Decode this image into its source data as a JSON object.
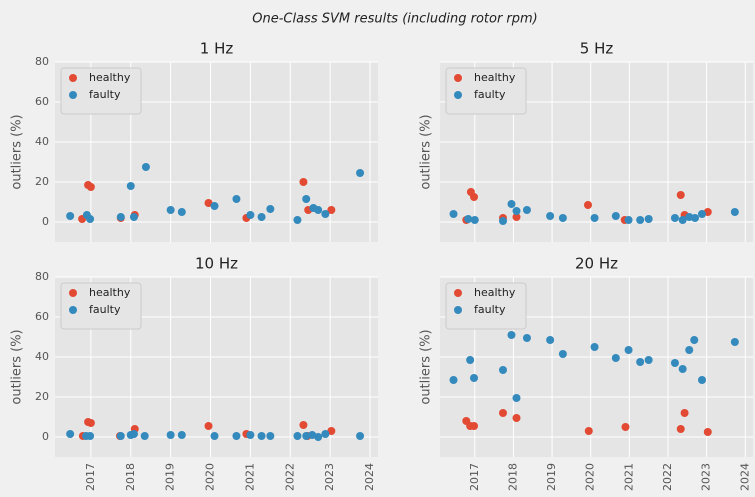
{
  "suptitle": "One-Class SVM results (including rotor rpm)",
  "chart_data": [
    {
      "type": "scatter",
      "title": "1 Hz",
      "ylabel": "outliers (%)",
      "xlim": [
        2016.1,
        2024.2
      ],
      "ylim": [
        -10,
        80
      ],
      "xticks": [
        2017,
        2018,
        2019,
        2020,
        2021,
        2022,
        2023,
        2024
      ],
      "yticks": [
        0,
        20,
        40,
        60,
        80
      ],
      "grid": true,
      "legend": "upper left",
      "series": [
        {
          "name": "healthy",
          "color": "#E24A33",
          "x": [
            2016.78,
            2016.93,
            2017.0,
            2017.75,
            2018.1,
            2019.95,
            2020.9,
            2022.33,
            2022.45,
            2023.03
          ],
          "values": [
            1.5,
            18.5,
            17.5,
            2,
            3.5,
            9.5,
            2,
            20,
            6,
            6
          ]
        },
        {
          "name": "faulty",
          "color": "#348ABD",
          "x": [
            2016.48,
            2016.9,
            2016.98,
            2017.75,
            2018.0,
            2018.08,
            2018.38,
            2019.0,
            2019.28,
            2020.1,
            2020.65,
            2021.0,
            2021.28,
            2021.5,
            2022.18,
            2022.4,
            2022.58,
            2022.7,
            2022.88,
            2023.75
          ],
          "values": [
            3,
            3.5,
            1.5,
            2.5,
            18,
            2.5,
            27.5,
            6,
            5,
            8,
            11.5,
            3.5,
            2.5,
            6.5,
            1,
            11.5,
            7,
            6,
            4,
            24.5
          ]
        }
      ]
    },
    {
      "type": "scatter",
      "title": "5 Hz",
      "ylabel": "outliers (%)",
      "xlim": [
        2016.1,
        2024.2
      ],
      "ylim": [
        -10,
        80
      ],
      "xticks": [
        2017,
        2018,
        2019,
        2020,
        2021,
        2022,
        2023,
        2024
      ],
      "yticks": [
        0,
        20,
        40,
        60,
        80
      ],
      "grid": true,
      "legend": "upper left",
      "series": [
        {
          "name": "healthy",
          "color": "#E24A33",
          "x": [
            2016.78,
            2016.9,
            2016.98,
            2017.73,
            2018.08,
            2019.93,
            2020.88,
            2022.33,
            2022.43,
            2023.03
          ],
          "values": [
            1,
            15,
            12.5,
            2,
            2.5,
            8.5,
            1,
            13.5,
            3.5,
            5
          ]
        },
        {
          "name": "faulty",
          "color": "#348ABD",
          "x": [
            2016.45,
            2016.83,
            2017.0,
            2017.73,
            2017.95,
            2018.08,
            2018.35,
            2018.95,
            2019.28,
            2020.1,
            2020.65,
            2020.98,
            2021.28,
            2021.5,
            2022.18,
            2022.38,
            2022.55,
            2022.7,
            2022.88,
            2023.73
          ],
          "values": [
            4,
            1.5,
            1,
            0.5,
            9,
            5.5,
            6,
            3,
            2,
            2,
            3,
            1,
            1,
            1.5,
            2,
            1,
            2.5,
            2,
            4,
            5
          ]
        }
      ]
    },
    {
      "type": "scatter",
      "title": "10 Hz",
      "ylabel": "outliers (%)",
      "xlim": [
        2016.1,
        2024.2
      ],
      "ylim": [
        -10,
        80
      ],
      "xticks": [
        2017,
        2018,
        2019,
        2020,
        2021,
        2022,
        2023,
        2024
      ],
      "yticks": [
        0,
        20,
        40,
        60,
        80
      ],
      "grid": true,
      "legend": "upper left",
      "series": [
        {
          "name": "healthy",
          "color": "#E24A33",
          "x": [
            2016.8,
            2016.93,
            2017.0,
            2017.73,
            2018.1,
            2019.95,
            2020.9,
            2022.33,
            2022.43,
            2023.03
          ],
          "values": [
            0.5,
            7.5,
            7,
            0.5,
            4,
            5.5,
            1.5,
            6,
            0.5,
            3
          ]
        },
        {
          "name": "faulty",
          "color": "#348ABD",
          "x": [
            2016.48,
            2016.88,
            2016.98,
            2017.75,
            2018.0,
            2018.08,
            2018.35,
            2019.0,
            2019.28,
            2020.1,
            2020.65,
            2021.0,
            2021.28,
            2021.5,
            2022.18,
            2022.4,
            2022.55,
            2022.7,
            2022.88,
            2023.75
          ],
          "values": [
            1.5,
            0.5,
            0.5,
            0.5,
            1,
            1.5,
            0.5,
            1,
            1,
            0.5,
            0.5,
            1,
            0.5,
            0.5,
            0.5,
            0.5,
            1,
            0,
            1.5,
            0.5
          ]
        }
      ]
    },
    {
      "type": "scatter",
      "title": "20 Hz",
      "ylabel": "outliers (%)",
      "xlim": [
        2016.1,
        2024.2
      ],
      "ylim": [
        -10,
        80
      ],
      "xticks": [
        2017,
        2018,
        2019,
        2020,
        2021,
        2022,
        2023,
        2024
      ],
      "yticks": [
        0,
        20,
        40,
        60,
        80
      ],
      "grid": true,
      "legend": "upper left",
      "series": [
        {
          "name": "healthy",
          "color": "#E24A33",
          "x": [
            2016.78,
            2016.88,
            2016.98,
            2017.73,
            2018.08,
            2019.95,
            2020.9,
            2022.33,
            2022.43,
            2023.03
          ],
          "values": [
            8,
            5.5,
            5.5,
            12,
            9.5,
            3,
            5,
            4,
            12,
            2.5
          ]
        },
        {
          "name": "faulty",
          "color": "#348ABD",
          "x": [
            2016.45,
            2016.88,
            2016.98,
            2017.73,
            2017.95,
            2018.08,
            2018.35,
            2018.95,
            2019.28,
            2020.1,
            2020.65,
            2020.98,
            2021.28,
            2021.5,
            2022.18,
            2022.38,
            2022.55,
            2022.68,
            2022.88,
            2023.73
          ],
          "values": [
            28.5,
            38.5,
            29.5,
            33.5,
            51,
            19.5,
            49.5,
            48.5,
            41.5,
            45,
            39.5,
            43.5,
            37.5,
            38.5,
            37,
            34,
            43.5,
            48.5,
            28.5,
            47.5
          ]
        }
      ]
    }
  ]
}
